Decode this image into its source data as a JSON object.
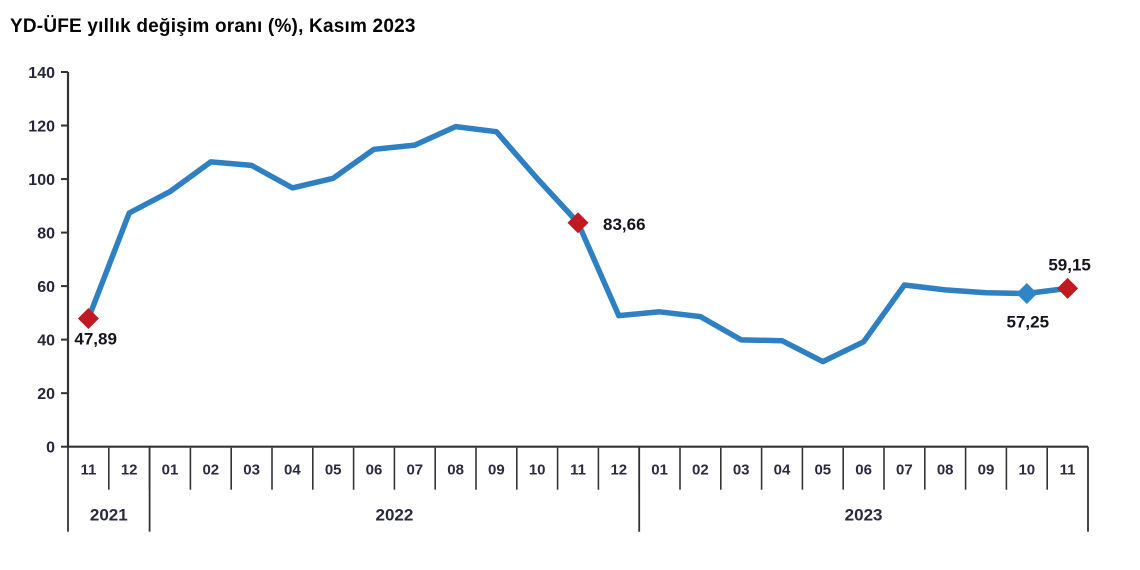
{
  "chart_data": {
    "type": "line",
    "title": "YD-ÜFE yıllık değişim oranı (%), Kasım 2023",
    "categories": [
      "11",
      "12",
      "01",
      "02",
      "03",
      "04",
      "05",
      "06",
      "07",
      "08",
      "09",
      "10",
      "11",
      "12",
      "01",
      "02",
      "03",
      "04",
      "05",
      "06",
      "07",
      "08",
      "09",
      "10",
      "11"
    ],
    "values": [
      47.89,
      87.3,
      95.3,
      106.4,
      105.1,
      96.7,
      100.3,
      111.1,
      112.7,
      119.6,
      117.7,
      100.2,
      83.66,
      49.0,
      50.4,
      48.6,
      39.9,
      39.6,
      31.8,
      39.2,
      60.4,
      58.6,
      57.5,
      57.25,
      59.15
    ],
    "year_groups": [
      {
        "label": "2021",
        "start": 0,
        "count": 2
      },
      {
        "label": "2022",
        "start": 2,
        "count": 12
      },
      {
        "label": "2023",
        "start": 14,
        "count": 11
      }
    ],
    "highlights": [
      {
        "index": 0,
        "label": "47,89",
        "marker": "diamond",
        "marker_color": "#c01922",
        "label_pos": "below-left"
      },
      {
        "index": 12,
        "label": "83,66",
        "marker": "diamond",
        "marker_color": "#c01922",
        "label_pos": "right"
      },
      {
        "index": 23,
        "label": "57,25",
        "marker": "diamond",
        "marker_color": "#2e86c8",
        "label_pos": "below"
      },
      {
        "index": 24,
        "label": "59,15",
        "marker": "diamond",
        "marker_color": "#c01922",
        "label_pos": "above"
      }
    ],
    "ylim": [
      0,
      140
    ],
    "ytick_step": 20,
    "xlabel": "",
    "ylabel": "",
    "grid": "off",
    "legend": "none",
    "line_color": "#2e80c2",
    "axis_color": "#333333"
  }
}
